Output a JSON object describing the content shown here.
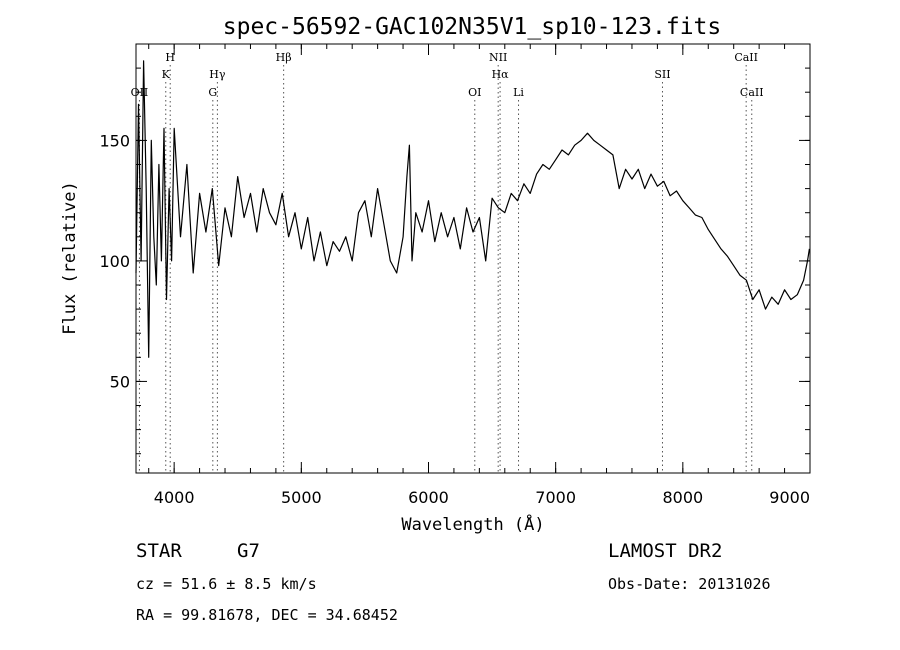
{
  "chart_data": {
    "type": "line",
    "title": "spec-56592-GAC102N35V1_sp10-123.fits",
    "xlabel": "Wavelength (Å)",
    "ylabel": "Flux (relative)",
    "xlim": [
      3700,
      9000
    ],
    "ylim": [
      12,
      190
    ],
    "x_ticks": [
      4000,
      5000,
      6000,
      7000,
      8000,
      9000
    ],
    "y_ticks": [
      50,
      100,
      150
    ],
    "x_minor_step": 200,
    "y_minor_step": 10,
    "grid": false,
    "series": [
      {
        "x": [
          3700,
          3720,
          3740,
          3760,
          3780,
          3800,
          3820,
          3840,
          3860,
          3880,
          3900,
          3920,
          3940,
          3960,
          3980,
          4000,
          4050,
          4100,
          4150,
          4200,
          4250,
          4300,
          4350,
          4400,
          4450,
          4500,
          4550,
          4600,
          4650,
          4700,
          4750,
          4800,
          4850,
          4900,
          4950,
          5000,
          5050,
          5100,
          5150,
          5200,
          5250,
          5300,
          5350,
          5400,
          5450,
          5500,
          5550,
          5600,
          5650,
          5700,
          5750,
          5800,
          5830,
          5850,
          5870,
          5900,
          5950,
          6000,
          6050,
          6100,
          6150,
          6200,
          6250,
          6300,
          6350,
          6400,
          6450,
          6500,
          6550,
          6600,
          6650,
          6700,
          6750,
          6800,
          6850,
          6900,
          6950,
          7000,
          7050,
          7100,
          7150,
          7200,
          7250,
          7300,
          7350,
          7400,
          7450,
          7500,
          7550,
          7600,
          7650,
          7700,
          7750,
          7800,
          7850,
          7900,
          7950,
          8000,
          8050,
          8100,
          8150,
          8200,
          8250,
          8300,
          8350,
          8400,
          8450,
          8500,
          8550,
          8600,
          8650,
          8700,
          8750,
          8800,
          8850,
          8900,
          8950,
          8980,
          8995
        ],
        "y": [
          95,
          165,
          100,
          183,
          130,
          60,
          150,
          110,
          90,
          140,
          100,
          155,
          84,
          130,
          100,
          155,
          110,
          140,
          95,
          128,
          112,
          130,
          98,
          122,
          110,
          135,
          118,
          128,
          112,
          130,
          120,
          115,
          128,
          110,
          120,
          105,
          118,
          100,
          112,
          98,
          108,
          104,
          110,
          100,
          120,
          125,
          110,
          130,
          115,
          100,
          95,
          110,
          135,
          148,
          100,
          120,
          112,
          125,
          108,
          120,
          110,
          118,
          105,
          122,
          112,
          118,
          100,
          126,
          122,
          120,
          128,
          125,
          132,
          128,
          136,
          140,
          138,
          142,
          146,
          144,
          148,
          150,
          153,
          150,
          148,
          146,
          144,
          130,
          138,
          134,
          138,
          130,
          136,
          131,
          133,
          127,
          129,
          125,
          122,
          119,
          118,
          113,
          109,
          105,
          102,
          98,
          94,
          92,
          84,
          88,
          80,
          85,
          82,
          88,
          84,
          86,
          92,
          100,
          105
        ]
      }
    ],
    "line_markers": [
      {
        "x": 3727,
        "label": "OII",
        "row": 3
      },
      {
        "x": 3934,
        "label": "K",
        "row": 2
      },
      {
        "x": 3969,
        "label": "H",
        "row": 1
      },
      {
        "x": 4304,
        "label": "G",
        "row": 3
      },
      {
        "x": 4340,
        "label": "Hγ",
        "row": 2
      },
      {
        "x": 4861,
        "label": "Hβ",
        "row": 1
      },
      {
        "x": 6364,
        "label": "OI",
        "row": 3
      },
      {
        "x": 6548,
        "label": "NII",
        "row": 1
      },
      {
        "x": 6563,
        "label": "Hα",
        "row": 2
      },
      {
        "x": 6708,
        "label": "Li",
        "row": 3
      },
      {
        "x": 7840,
        "label": "SII",
        "row": 2
      },
      {
        "x": 8498,
        "label": "CaII",
        "row": 1
      },
      {
        "x": 8542,
        "label": "CaII",
        "row": 3
      }
    ]
  },
  "info": {
    "object_class": "STAR",
    "subclass": "G7",
    "survey": "LAMOST DR2",
    "velocity": "cz =  51.6 ± 8.5 km/s",
    "obs_date": "Obs-Date: 20131026",
    "coords": "RA =   99.81678, DEC =   34.68452"
  }
}
